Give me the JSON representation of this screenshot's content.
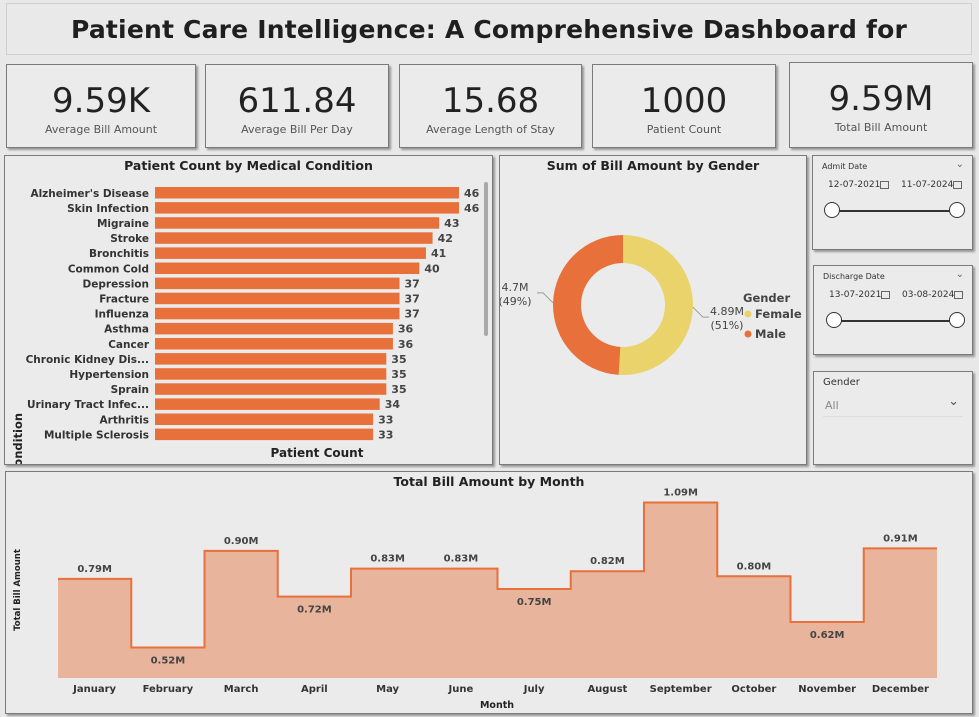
{
  "dashboard": {
    "title": "Patient Care Intelligence: A Comprehensive Dashboard for Healthcare"
  },
  "kpis": [
    {
      "value": "9.59K",
      "label": "Average Bill Amount"
    },
    {
      "value": "611.84",
      "label": "Average Bill Per Day"
    },
    {
      "value": "15.68",
      "label": "Average Length of Stay"
    },
    {
      "value": "1000",
      "label": "Patient Count"
    },
    {
      "value": "9.59M",
      "label": "Total Bill Amount"
    }
  ],
  "slicers": {
    "admit": {
      "title": "Admit Date",
      "start": "12-07-2021",
      "end": "11-07-2024"
    },
    "discharge": {
      "title": "Discharge Date",
      "start": "13-07-2021",
      "end": "03-08-2024"
    },
    "gender": {
      "title": "Gender",
      "value": "All"
    }
  },
  "colors": {
    "orange": "#e8703a",
    "yellow": "#ead36a",
    "area": "#e8b49c"
  },
  "chart_data": [
    {
      "type": "bar",
      "orientation": "horizontal",
      "title": "Patient Count by Medical Condition",
      "xlabel": "Patient Count",
      "ylabel": "Medical Condition",
      "categories": [
        "Alzheimer's Disease",
        "Skin Infection",
        "Migraine",
        "Stroke",
        "Bronchitis",
        "Common Cold",
        "Depression",
        "Fracture",
        "Influenza",
        "Asthma",
        "Cancer",
        "Chronic Kidney Dis...",
        "Hypertension",
        "Sprain",
        "Urinary Tract Infec...",
        "Arthritis",
        "Multiple Sclerosis"
      ],
      "values": [
        46,
        46,
        43,
        42,
        41,
        40,
        37,
        37,
        37,
        36,
        36,
        35,
        35,
        35,
        34,
        33,
        33
      ],
      "color": "#e8703a"
    },
    {
      "type": "pie",
      "donut": true,
      "title": "Sum of Bill Amount by Gender",
      "legend_title": "Gender",
      "legend_position": "right",
      "slices": [
        {
          "name": "Female",
          "value": 4.89,
          "label": "4.89M",
          "pct": "(51%)",
          "color": "#ead36a"
        },
        {
          "name": "Male",
          "value": 4.7,
          "label": "4.7M",
          "pct": "(49%)",
          "color": "#e8703a"
        }
      ]
    },
    {
      "type": "area",
      "step": true,
      "title": "Total Bill Amount by Month",
      "xlabel": "Month",
      "ylabel": "Total Bill Amount",
      "categories": [
        "January",
        "February",
        "March",
        "April",
        "May",
        "June",
        "July",
        "August",
        "September",
        "October",
        "November",
        "December"
      ],
      "values": [
        0.79,
        0.52,
        0.9,
        0.72,
        0.83,
        0.83,
        0.75,
        0.82,
        1.09,
        0.8,
        0.62,
        0.91
      ],
      "labels": [
        "0.79M",
        "0.52M",
        "0.90M",
        "0.72M",
        "0.83M",
        "0.83M",
        "0.75M",
        "0.82M",
        "1.09M",
        "0.80M",
        "0.62M",
        "0.91M"
      ],
      "ylim": [
        0.4,
        1.1
      ]
    }
  ]
}
